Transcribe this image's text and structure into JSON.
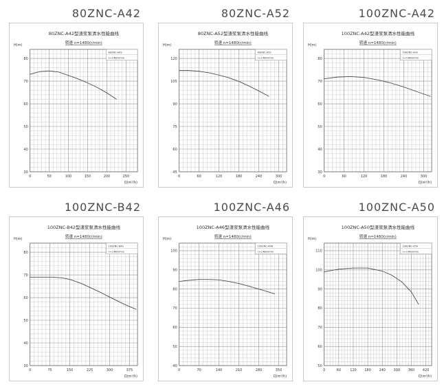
{
  "page": {
    "background": "#ffffff",
    "text_color": "#4a4a4a",
    "grid_minor_color": "#b5b5b5",
    "grid_major_color": "#8f8f8f",
    "curve_color": "#4a4a4a"
  },
  "chart_data": [
    {
      "type": "line",
      "outer_title": "80ZNC-A42",
      "inner_title": "80ZNC-A42型渣浆泵清水性能曲线",
      "speed_label": "转速 n=1480(r/min)",
      "legend": {
        "model": "80ZNC-A42",
        "speed": "n=1480r/min"
      },
      "ylabel": "H(m)",
      "xlabel": "Q(m³/h)",
      "x_ticks": [
        0,
        50,
        100,
        150,
        200,
        250
      ],
      "x_minor": 10,
      "x_extent": 280,
      "y_ticks": [
        30,
        40,
        50,
        60,
        70,
        80
      ],
      "y_minor": 2,
      "y_min": 30,
      "y_max": 84,
      "grid": true,
      "legend_position": "top-right",
      "curve": {
        "x": [
          0,
          25,
          50,
          75,
          100,
          125,
          150,
          175,
          200,
          225
        ],
        "y": [
          73,
          74.2,
          74.5,
          74,
          72.5,
          71,
          69.2,
          67.2,
          64.8,
          62
        ]
      }
    },
    {
      "type": "line",
      "outer_title": "80ZNC-A52",
      "inner_title": "80ZNC-A52型渣浆泵清水性能曲线",
      "speed_label": "转速 n=1480(r/min)",
      "legend": {
        "model": "80ZNC-A52",
        "speed": "n=1480r/min"
      },
      "ylabel": "H(m)",
      "xlabel": "Q(m³/h)",
      "x_ticks": [
        0,
        60,
        120,
        180,
        240,
        300
      ],
      "x_minor": 12,
      "x_extent": 324,
      "y_ticks": [
        45,
        60,
        75,
        90,
        105,
        120
      ],
      "y_minor": 3,
      "y_min": 45,
      "y_max": 126,
      "grid": true,
      "legend_position": "top-right",
      "curve": {
        "x": [
          0,
          30,
          60,
          90,
          120,
          150,
          180,
          210,
          240,
          270
        ],
        "y": [
          112,
          112,
          111.5,
          110.5,
          109,
          107.2,
          104.8,
          101.8,
          98.5,
          95
        ]
      }
    },
    {
      "type": "line",
      "outer_title": "100ZNC-A42",
      "inner_title": "100ZNC-A42型渣浆泵清水性能曲线",
      "speed_label": "转速 n=1480(r/min)",
      "legend": {
        "model": "100ZNC-A42",
        "speed": "n=1480r/min"
      },
      "ylabel": "H(m)",
      "xlabel": "Q(m³/h)",
      "x_ticks": [
        0,
        60,
        120,
        180,
        240,
        300
      ],
      "x_minor": 12,
      "x_extent": 324,
      "y_ticks": [
        30,
        40,
        50,
        60,
        70,
        80
      ],
      "y_minor": 2,
      "y_min": 30,
      "y_max": 84,
      "grid": true,
      "legend_position": "top-right",
      "curve": {
        "x": [
          0,
          40,
          80,
          120,
          160,
          200,
          240,
          280,
          320
        ],
        "y": [
          71,
          71.8,
          72,
          71.6,
          70.6,
          69.2,
          67.4,
          65.3,
          63.3
        ]
      }
    },
    {
      "type": "line",
      "outer_title": "100ZNC-B42",
      "inner_title": "100ZNC-B42型渣浆泵清水性能曲线",
      "speed_label": "转速 n=1480(r/min)",
      "legend": {
        "model": "100ZNC-B42",
        "speed": "n=1480r/min"
      },
      "ylabel": "H(m)",
      "xlabel": "Q(m³/h)",
      "x_ticks": [
        0,
        75,
        150,
        225,
        300,
        375
      ],
      "x_minor": 15,
      "x_extent": 405,
      "y_ticks": [
        30,
        40,
        50,
        60,
        70,
        80
      ],
      "y_minor": 2,
      "y_min": 30,
      "y_max": 84,
      "grid": true,
      "legend_position": "top-right",
      "curve": {
        "x": [
          0,
          40,
          80,
          120,
          150,
          190,
          225,
          260,
          300,
          340,
          375,
          400
        ],
        "y": [
          69,
          69,
          69,
          68.7,
          68,
          66.4,
          64.5,
          62.6,
          60.2,
          57.9,
          56,
          54.8
        ]
      }
    },
    {
      "type": "line",
      "outer_title": "100ZNC-A46",
      "inner_title": "100ZNC-A46型渣浆泵清水性能曲线",
      "speed_label": "转速 n=1480(r/min)",
      "legend": {
        "model": "100ZNC-A46",
        "speed": "n=1480r/min"
      },
      "ylabel": "H(m)",
      "xlabel": "Q(m³/h)",
      "x_ticks": [
        0,
        70,
        140,
        210,
        280,
        350
      ],
      "x_minor": 14,
      "x_extent": 378,
      "y_ticks": [
        40,
        50,
        60,
        70,
        80,
        90,
        100
      ],
      "y_minor": 2,
      "y_min": 40,
      "y_max": 104,
      "grid": true,
      "legend_position": "top-right",
      "curve": {
        "x": [
          0,
          35,
          70,
          105,
          140,
          175,
          210,
          245,
          280,
          310,
          335
        ],
        "y": [
          84,
          84.6,
          85,
          85,
          84.8,
          84,
          82.9,
          81.5,
          80,
          78.7,
          77.5
        ]
      }
    },
    {
      "type": "line",
      "outer_title": "100ZNC-A50",
      "inner_title": "100ZNC-A50型渣浆泵清水性能曲线",
      "speed_label": "转速 n=1480(r/min)",
      "legend": {
        "model": "100ZNC-A50",
        "speed": "n=1480r/min"
      },
      "ylabel": "H(m)",
      "xlabel": "Q(m³/h)",
      "x_ticks": [
        0,
        60,
        120,
        180,
        240,
        300,
        360,
        420
      ],
      "x_minor": 12,
      "x_extent": 444,
      "y_ticks": [
        50,
        60,
        70,
        80,
        90,
        100,
        110
      ],
      "y_minor": 2,
      "y_min": 50,
      "y_max": 114,
      "grid": true,
      "legend_position": "top-right",
      "curve": {
        "x": [
          0,
          60,
          120,
          180,
          240,
          280,
          320,
          360,
          390
        ],
        "y": [
          99,
          100.4,
          101,
          101,
          99.4,
          97.2,
          93.8,
          88.5,
          82
        ]
      }
    }
  ]
}
